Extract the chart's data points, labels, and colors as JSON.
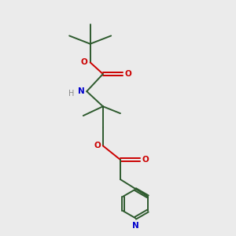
{
  "background_color": "#ebebeb",
  "bond_color": "#2d5a2d",
  "oxygen_color": "#cc0000",
  "nitrogen_color": "#0000cc",
  "hydrogen_color": "#888888",
  "line_width": 1.4,
  "figsize": [
    3.0,
    3.0
  ],
  "dpi": 100,
  "xlim": [
    0,
    10
  ],
  "ylim": [
    0,
    10
  ]
}
